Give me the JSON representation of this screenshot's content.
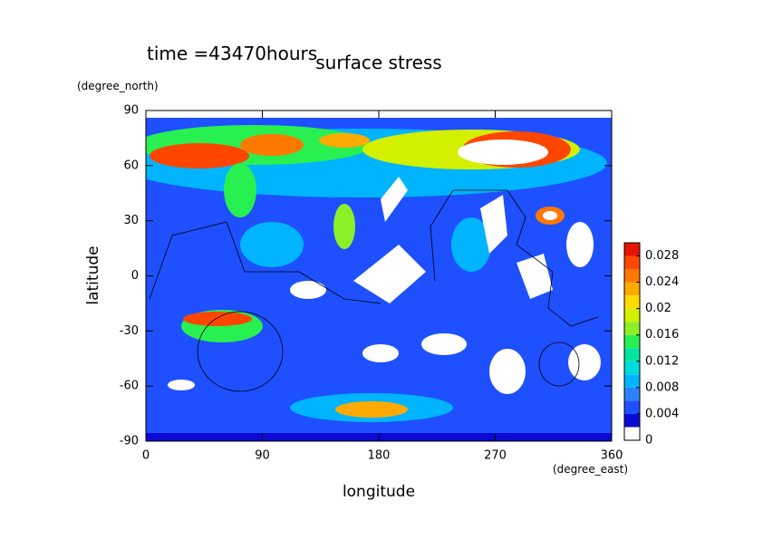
{
  "chart_data": {
    "type": "contour",
    "title": "surface stress",
    "subtitle": "time =43470hours",
    "xlabel": "longitude",
    "xunit": "(degree_east)",
    "ylabel": "latitude",
    "yunit": "(degree_north)",
    "xlim": [
      0,
      360
    ],
    "xticks": [
      0,
      90,
      180,
      270,
      360
    ],
    "ylim": [
      -90,
      90
    ],
    "yticks": [
      -90,
      -60,
      -30,
      0,
      30,
      60,
      90
    ],
    "colorbar": {
      "levels": [
        0,
        0.002,
        0.004,
        0.006,
        0.008,
        0.01,
        0.012,
        0.014,
        0.016,
        0.018,
        0.02,
        0.022,
        0.024,
        0.026,
        0.028,
        0.03
      ],
      "colors": [
        "#ffffff",
        "#0a0ad2",
        "#1e50ff",
        "#2d82ff",
        "#00b4ff",
        "#00dcdc",
        "#00e6a0",
        "#28f050",
        "#8cf028",
        "#d2f000",
        "#ffdc00",
        "#ffaa00",
        "#ff7800",
        "#ff4600",
        "#e61400"
      ],
      "ticks": [
        0,
        0.004,
        0.008,
        0.012,
        0.016,
        0.02,
        0.024,
        0.028
      ]
    }
  }
}
